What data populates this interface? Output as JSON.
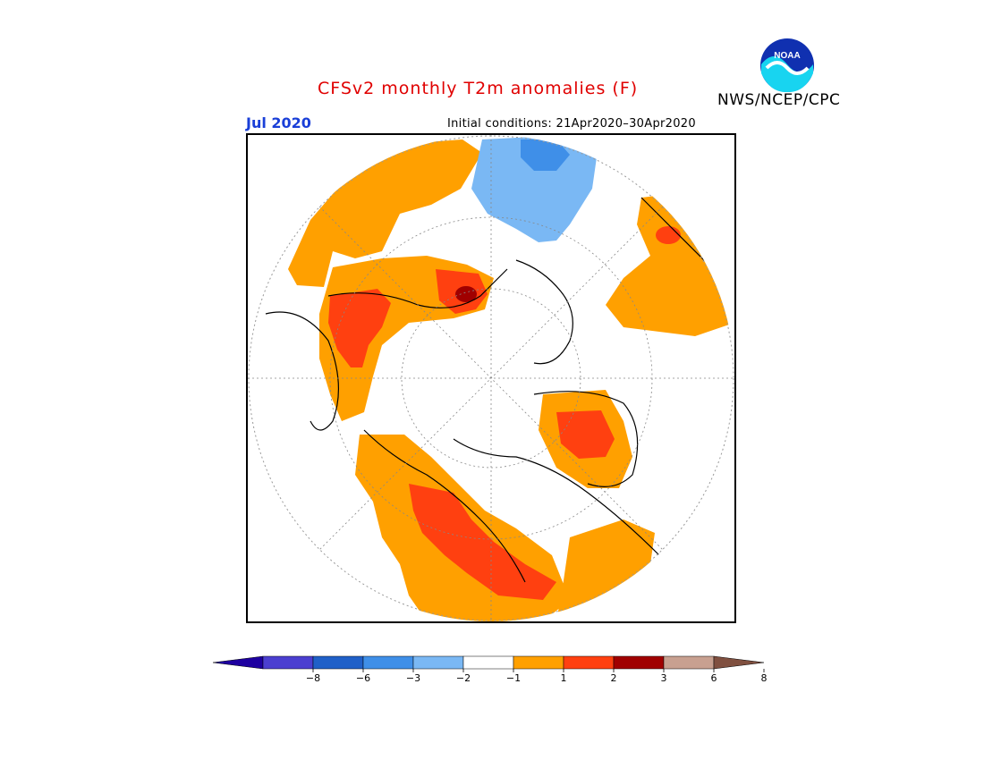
{
  "header": {
    "title": "CFSv2 monthly T2m anomalies (F)",
    "agency": "NWS/NCEP/CPC",
    "logo_text": "NOAA",
    "valid_month": "Jul 2020",
    "initial_conditions": "Initial conditions: 21Apr2020–30Apr2020"
  },
  "map": {
    "projection": "north-polar-stereographic",
    "variable": "2m temperature anomaly",
    "units": "F",
    "dominant_category": "1 to 2",
    "features": [
      {
        "name": "blue-anomaly-north-atlantic",
        "category": "-2 to -1"
      },
      {
        "name": "warm-anomaly-eastern-europe",
        "category": "2 to 3"
      },
      {
        "name": "warm-anomaly-central-siberia",
        "category": "2 to 3"
      },
      {
        "name": "warm-anomaly-western-north-america",
        "category": "2 to 3"
      },
      {
        "name": "warm-anomaly-eastern-canada",
        "category": "2 to 3"
      }
    ]
  },
  "legend": {
    "ticks": [
      "−8",
      "−6",
      "−3",
      "−2",
      "−1",
      "1",
      "2",
      "3",
      "6",
      "8"
    ],
    "colors": [
      "#1e00a0",
      "#4b3fd0",
      "#2060c8",
      "#3f8fe8",
      "#7ab8f4",
      "#ffffff",
      "#ffa000",
      "#ff4010",
      "#a00000",
      "#c8a090",
      "#805040"
    ]
  },
  "colors": {
    "title": "#e00000",
    "month": "#1a3fd8",
    "ocean_land_zero": "#ffffff",
    "coastline": "#000000"
  }
}
